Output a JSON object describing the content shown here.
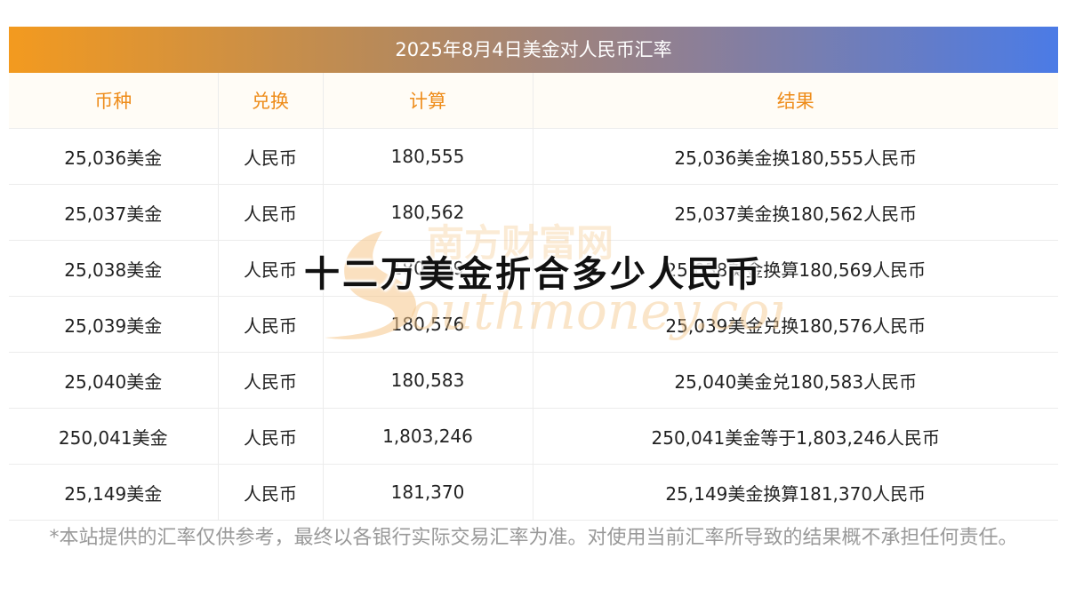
{
  "table": {
    "title": "2025年8月4日美金对人民币汇率",
    "headers": [
      "币种",
      "兑换",
      "计算",
      "结果"
    ],
    "rows": [
      [
        "25,036美金",
        "人民币",
        "180,555",
        "25,036美金换180,555人民币"
      ],
      [
        "25,037美金",
        "人民币",
        "180,562",
        "25,037美金换180,562人民币"
      ],
      [
        "25,038美金",
        "人民币",
        "180,569",
        "25,038美金换算180,569人民币"
      ],
      [
        "25,039美金",
        "人民币",
        "180,576",
        "25,039美金兑换180,576人民币"
      ],
      [
        "25,040美金",
        "人民币",
        "180,583",
        "25,040美金兑180,583人民币"
      ],
      [
        "250,041美金",
        "人民币",
        "1,803,246",
        "250,041美金等于1,803,246人民币"
      ],
      [
        "25,149美金",
        "人民币",
        "181,370",
        "25,149美金换算181,370人民币"
      ]
    ]
  },
  "overlay_heading": "十二万美金折合多少人民币",
  "watermark": {
    "chinese": "南方财富网",
    "english": "outhmoney.com",
    "color": "#f5c78a"
  },
  "footnote": "*本站提供的汇率仅供参考，最终以各银行实际交易汇率为准。对使用当前汇率所导致的结果概不承担任何责任。"
}
